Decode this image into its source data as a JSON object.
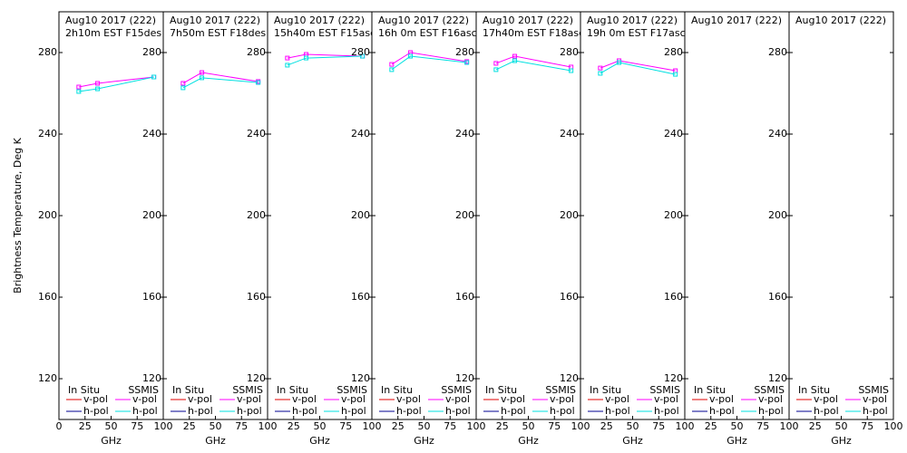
{
  "chart_data": [
    {
      "type": "line",
      "title": "Aug10 2017 (222)",
      "subtitle": "2h10m EST F15des",
      "ylabel": "Brightness Temperature, Deg K",
      "xlabel": "GHz",
      "legend_groups": [
        "In Situ",
        "SSMIS"
      ],
      "x": [
        19,
        37,
        91
      ],
      "xlim": [
        0,
        100
      ],
      "xticks": [
        0,
        25,
        50,
        75,
        100
      ],
      "ylim": [
        100,
        300
      ],
      "yticks": [
        120,
        160,
        200,
        240,
        280
      ],
      "series": [
        {
          "name": "v-pol",
          "color": "#e00000",
          "values": [
            null,
            null,
            null
          ]
        },
        {
          "name": "h-pol",
          "color": "#000090",
          "values": [
            null,
            null,
            null
          ]
        },
        {
          "name": "v-pol",
          "color": "#ff00ff",
          "values": [
            263.1,
            264.9,
            268
          ]
        },
        {
          "name": "h-pol",
          "color": "#00e0e0",
          "values": [
            260.9,
            262.2,
            268
          ]
        }
      ]
    },
    {
      "type": "line",
      "title": "Aug10 2017 (222)",
      "subtitle": "7h50m EST F18des",
      "xlabel": "GHz",
      "legend_groups": [
        "In Situ",
        "SSMIS"
      ],
      "x": [
        19,
        37,
        91
      ],
      "xlim": [
        0,
        100
      ],
      "xticks": [
        25,
        50,
        75,
        100
      ],
      "ylim": [
        100,
        300
      ],
      "yticks": [
        120,
        160,
        200,
        240,
        280
      ],
      "series": [
        {
          "name": "v-pol",
          "color": "#e00000",
          "values": [
            null,
            null,
            null
          ]
        },
        {
          "name": "h-pol",
          "color": "#000090",
          "values": [
            null,
            null,
            null
          ]
        },
        {
          "name": "v-pol",
          "color": "#ff00ff",
          "values": [
            264.9,
            270.2,
            265.8
          ]
        },
        {
          "name": "h-pol",
          "color": "#00e0e0",
          "values": [
            262.7,
            267.6,
            265.3
          ]
        }
      ]
    },
    {
      "type": "line",
      "title": "Aug10 2017 (222)",
      "subtitle": "15h40m EST F15asc",
      "xlabel": "GHz",
      "legend_groups": [
        "In Situ",
        "SSMIS"
      ],
      "x": [
        19,
        37,
        91
      ],
      "xlim": [
        0,
        100
      ],
      "xticks": [
        25,
        50,
        75,
        100
      ],
      "ylim": [
        100,
        300
      ],
      "yticks": [
        120,
        160,
        200,
        240,
        280
      ],
      "series": [
        {
          "name": "v-pol",
          "color": "#e00000",
          "values": [
            null,
            null,
            null
          ]
        },
        {
          "name": "h-pol",
          "color": "#000090",
          "values": [
            null,
            null,
            null
          ]
        },
        {
          "name": "v-pol",
          "color": "#ff00ff",
          "values": [
            277.3,
            279.1,
            278.2
          ]
        },
        {
          "name": "h-pol",
          "color": "#00e0e0",
          "values": [
            273.8,
            277.3,
            278.2
          ]
        }
      ]
    },
    {
      "type": "line",
      "title": "Aug10 2017 (222)",
      "subtitle": "16h 0m EST F16asc",
      "xlabel": "GHz",
      "legend_groups": [
        "In Situ",
        "SSMIS"
      ],
      "x": [
        19,
        37,
        91
      ],
      "xlim": [
        0,
        100
      ],
      "xticks": [
        25,
        50,
        75,
        100
      ],
      "ylim": [
        100,
        300
      ],
      "yticks": [
        120,
        160,
        200,
        240,
        280
      ],
      "series": [
        {
          "name": "v-pol",
          "color": "#e00000",
          "values": [
            null,
            null,
            null
          ]
        },
        {
          "name": "h-pol",
          "color": "#000090",
          "values": [
            null,
            null,
            null
          ]
        },
        {
          "name": "v-pol",
          "color": "#ff00ff",
          "values": [
            274.2,
            280,
            275.6
          ]
        },
        {
          "name": "h-pol",
          "color": "#00e0e0",
          "values": [
            271.6,
            278.2,
            275.1
          ]
        }
      ]
    },
    {
      "type": "line",
      "title": "Aug10 2017 (222)",
      "subtitle": "17h40m EST F18asc",
      "xlabel": "GHz",
      "legend_groups": [
        "In Situ",
        "SSMIS"
      ],
      "x": [
        19,
        37,
        91
      ],
      "xlim": [
        0,
        100
      ],
      "xticks": [
        25,
        50,
        75,
        100
      ],
      "ylim": [
        100,
        300
      ],
      "yticks": [
        120,
        160,
        200,
        240,
        280
      ],
      "series": [
        {
          "name": "v-pol",
          "color": "#e00000",
          "values": [
            null,
            null,
            null
          ]
        },
        {
          "name": "h-pol",
          "color": "#000090",
          "values": [
            null,
            null,
            null
          ]
        },
        {
          "name": "v-pol",
          "color": "#ff00ff",
          "values": [
            274.7,
            278.2,
            272.9
          ]
        },
        {
          "name": "h-pol",
          "color": "#00e0e0",
          "values": [
            271.6,
            276,
            271.1
          ]
        }
      ]
    },
    {
      "type": "line",
      "title": "Aug10 2017 (222)",
      "subtitle": "19h 0m EST F17asc",
      "xlabel": "GHz",
      "legend_groups": [
        "In Situ",
        "SSMIS"
      ],
      "x": [
        19,
        37,
        91
      ],
      "xlim": [
        0,
        100
      ],
      "xticks": [
        25,
        50,
        75,
        100
      ],
      "ylim": [
        100,
        300
      ],
      "yticks": [
        120,
        160,
        200,
        240,
        280
      ],
      "series": [
        {
          "name": "v-pol",
          "color": "#e00000",
          "values": [
            null,
            null,
            null
          ]
        },
        {
          "name": "h-pol",
          "color": "#000090",
          "values": [
            null,
            null,
            null
          ]
        },
        {
          "name": "v-pol",
          "color": "#ff00ff",
          "values": [
            272.4,
            276,
            271.1
          ]
        },
        {
          "name": "h-pol",
          "color": "#00e0e0",
          "values": [
            269.8,
            275.1,
            269.3
          ]
        }
      ]
    },
    {
      "type": "line",
      "title": "Aug10 2017 (222)",
      "xlabel": "GHz",
      "legend_groups": [
        "In Situ",
        "SSMIS"
      ],
      "x": [
        19,
        37,
        91
      ],
      "xlim": [
        0,
        100
      ],
      "xticks": [
        25,
        50,
        75,
        100
      ],
      "ylim": [
        100,
        300
      ],
      "yticks": [
        120,
        160,
        200,
        240,
        280
      ],
      "series": [
        {
          "name": "v-pol",
          "color": "#e00000",
          "values": [
            null,
            null,
            null
          ]
        },
        {
          "name": "h-pol",
          "color": "#000090",
          "values": [
            null,
            null,
            null
          ]
        },
        {
          "name": "v-pol",
          "color": "#ff00ff",
          "values": [
            null,
            null,
            null
          ]
        },
        {
          "name": "h-pol",
          "color": "#00e0e0",
          "values": [
            null,
            null,
            null
          ]
        }
      ]
    },
    {
      "type": "line",
      "title": "Aug10 2017 (222)",
      "xlabel": "GHz",
      "legend_groups": [
        "In Situ",
        "SSMIS"
      ],
      "x": [
        19,
        37,
        91
      ],
      "xlim": [
        0,
        100
      ],
      "xticks": [
        25,
        50,
        75,
        100
      ],
      "ylim": [
        100,
        300
      ],
      "yticks": [
        120,
        160,
        200,
        240,
        280
      ],
      "series": [
        {
          "name": "v-pol",
          "color": "#e00000",
          "values": [
            null,
            null,
            null
          ]
        },
        {
          "name": "h-pol",
          "color": "#000090",
          "values": [
            null,
            null,
            null
          ]
        },
        {
          "name": "v-pol",
          "color": "#ff00ff",
          "values": [
            null,
            null,
            null
          ]
        },
        {
          "name": "h-pol",
          "color": "#00e0e0",
          "values": [
            null,
            null,
            null
          ]
        }
      ]
    }
  ]
}
